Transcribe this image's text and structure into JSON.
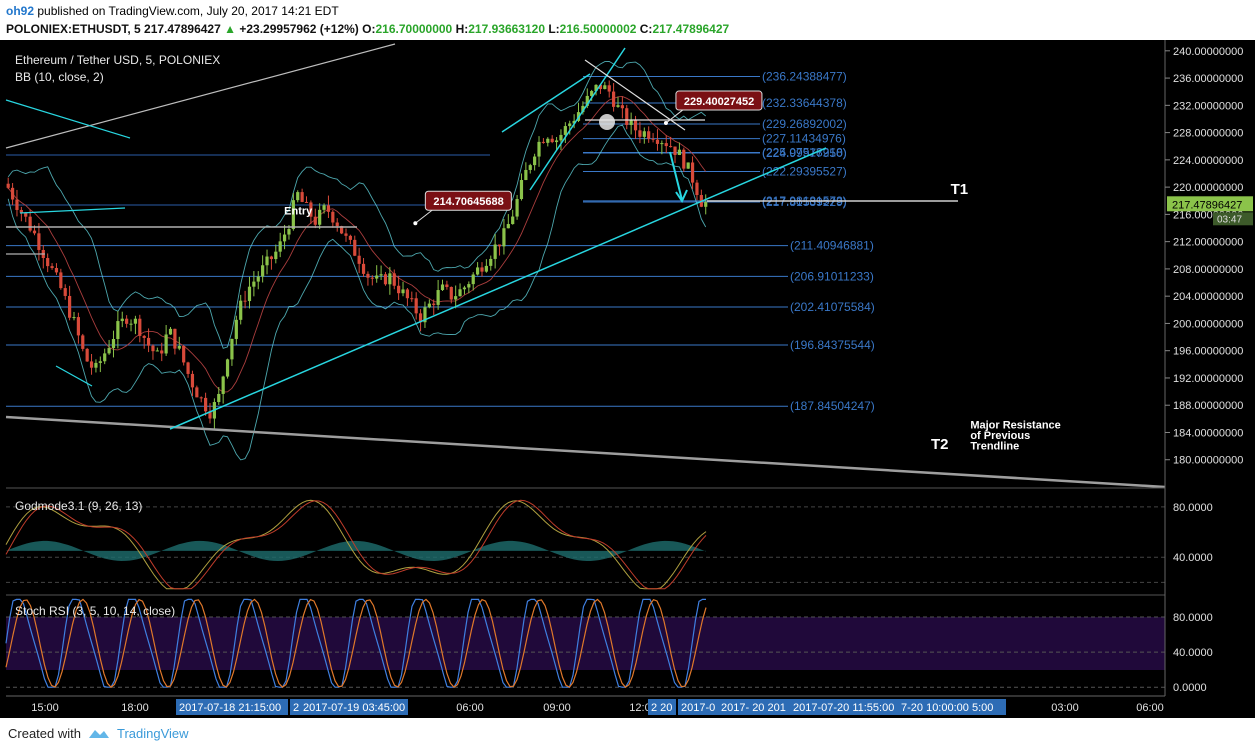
{
  "header": {
    "user": "oh92",
    "published": "published on TradingView.com, July 20, 2017 14:21 EDT",
    "symbol": "POLONIEX:ETHUSDT, 5",
    "last": "217.47896427",
    "change": "+23.29957962 (+12%)",
    "o_label": "O:",
    "o_value": "216.70000000",
    "h_label": "H:",
    "h_value": "217.93663120",
    "l_label": "L:",
    "l_value": "216.50000002",
    "c_label": "C:",
    "c_value": "217.47896427"
  },
  "footer": {
    "created_with": "Created with",
    "brand": "TradingView"
  },
  "colors": {
    "cyan": "#28d6e0",
    "gray": "#9e9e9e",
    "fib": "#3a78c8",
    "up": "#8bc34a",
    "down": "#d84a3a",
    "stoch_bg": "#20093a",
    "label_bg": "#7a1014"
  },
  "chart_data": [
    {
      "type": "line",
      "title": "Ethereum / Tether USD, 5, POLONIEX",
      "indicator": "BB (10, close, 2)",
      "ylim": [
        176,
        241
      ],
      "yticks": [
        "240.00000000",
        "236.00000000",
        "232.00000000",
        "228.00000000",
        "224.00000000",
        "220.00000000",
        "216.00000000",
        "212.00000000",
        "208.00000000",
        "204.00000000",
        "200.00000000",
        "196.00000000",
        "192.00000000",
        "188.00000000",
        "184.00000000",
        "180.00000000"
      ],
      "xticks": [
        "15:00",
        "18:00",
        "06:00",
        "09:00",
        "12:0",
        "03:00",
        "06:00"
      ],
      "time_labels": [
        "2017-07-18 21:15:00",
        "2",
        "2017-07-19 03:45:00",
        "2 20",
        "2017-0",
        "2017-  20 201",
        "2017-07-20 11:55:00",
        "7-20 10:00:00 5:00"
      ],
      "price_label": "217.47896427",
      "time_to_close": "03:47",
      "fib_levels": [
        {
          "label": "(236.24388477)",
          "y": 236.24
        },
        {
          "label": "(232.33644378)",
          "y": 232.34
        },
        {
          "label": "(229.26892002)",
          "y": 229.27
        },
        {
          "label": "(227.11434976)",
          "y": 227.11
        },
        {
          "label": "(225.07518218)",
          "y": 225.08
        },
        {
          "label": "(224.99977950)",
          "y": 225.0
        },
        {
          "label": "(222.29395527)",
          "y": 222.29
        },
        {
          "label": "(217.98181573)",
          "y": 217.98
        },
        {
          "label": "(217.81539229)",
          "y": 217.82
        },
        {
          "label": "(211.40946881)",
          "y": 211.41
        },
        {
          "label": "(206.91011233)",
          "y": 206.91
        },
        {
          "label": "(202.41075584)",
          "y": 202.41
        },
        {
          "label": "(196.84375544)",
          "y": 196.84
        },
        {
          "label": "(187.84504247)",
          "y": 187.85
        }
      ],
      "close_path": [
        [
          0,
          220.5
        ],
        [
          10,
          217
        ],
        [
          22,
          213
        ],
        [
          32,
          209
        ],
        [
          42,
          205
        ],
        [
          52,
          200
        ],
        [
          60,
          195
        ],
        [
          68,
          193
        ],
        [
          76,
          196
        ],
        [
          84,
          199
        ],
        [
          92,
          201
        ],
        [
          100,
          200
        ],
        [
          108,
          197
        ],
        [
          116,
          195
        ],
        [
          124,
          199
        ],
        [
          132,
          196
        ],
        [
          140,
          192
        ],
        [
          148,
          189
        ],
        [
          156,
          187
        ],
        [
          162,
          189
        ],
        [
          168,
          195
        ],
        [
          176,
          201
        ],
        [
          184,
          205
        ],
        [
          192,
          207
        ],
        [
          200,
          209
        ],
        [
          208,
          211
        ],
        [
          216,
          215
        ],
        [
          222,
          219
        ],
        [
          228,
          217
        ],
        [
          236,
          215
        ],
        [
          244,
          217
        ],
        [
          252,
          215
        ],
        [
          260,
          212
        ],
        [
          268,
          210
        ],
        [
          276,
          207
        ],
        [
          284,
          206
        ],
        [
          292,
          207
        ],
        [
          300,
          205
        ],
        [
          308,
          203
        ],
        [
          316,
          201
        ],
        [
          324,
          203
        ],
        [
          332,
          205
        ],
        [
          340,
          204
        ],
        [
          348,
          205
        ],
        [
          356,
          207
        ],
        [
          364,
          209
        ],
        [
          372,
          211
        ],
        [
          380,
          213
        ],
        [
          388,
          217
        ],
        [
          396,
          222
        ],
        [
          404,
          226
        ],
        [
          412,
          228
        ],
        [
          420,
          227
        ],
        [
          428,
          229
        ],
        [
          436,
          231
        ],
        [
          444,
          233
        ],
        [
          452,
          235
        ],
        [
          460,
          234
        ],
        [
          468,
          231
        ],
        [
          476,
          229
        ],
        [
          484,
          228
        ],
        [
          492,
          228
        ],
        [
          500,
          227
        ],
        [
          508,
          226
        ],
        [
          516,
          224
        ],
        [
          524,
          221
        ],
        [
          530,
          218
        ],
        [
          535,
          217.5
        ]
      ],
      "candle_count": 160,
      "annotations": [
        {
          "text": "214.70645688",
          "x": 312,
          "y": 214.7,
          "kind": "price-label"
        },
        {
          "text": "229.40027452",
          "x": 503,
          "y": 229.4,
          "kind": "price-label"
        },
        {
          "text": "Entry",
          "x": 212,
          "y": 216.6,
          "kind": "text"
        },
        {
          "text": "T1",
          "x": 720,
          "y": 219.7,
          "kind": "target"
        },
        {
          "text": "T2",
          "x": 705,
          "y": 182.3,
          "kind": "target"
        },
        {
          "text": "Major Resistance",
          "x": 735,
          "y": 185.2,
          "kind": "text"
        },
        {
          "text": "of Previous",
          "x": 735,
          "y": 183.6,
          "kind": "text"
        },
        {
          "text": "Trendline",
          "x": 735,
          "y": 182.1,
          "kind": "text"
        }
      ]
    },
    {
      "type": "line",
      "title": "Godmode3.1 (9, 26, 13)",
      "ylim": [
        10,
        95
      ],
      "yticks": [
        "80.0000",
        "40.0000"
      ]
    },
    {
      "type": "line",
      "title": "Stoch RSI (3, 5, 10, 14, close)",
      "ylim": [
        -10,
        105
      ],
      "yticks": [
        "80.0000",
        "40.0000",
        "0.0000"
      ]
    }
  ]
}
